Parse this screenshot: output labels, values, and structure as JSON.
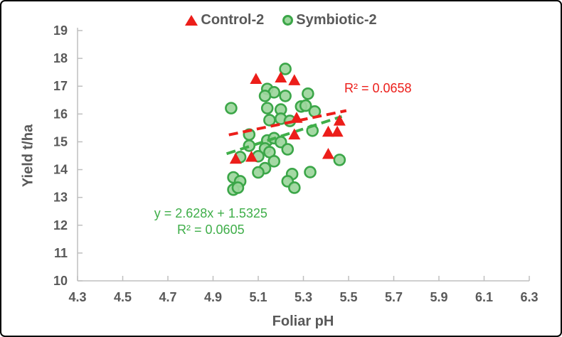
{
  "chart_data": {
    "type": "scatter",
    "title": "",
    "xlabel": "Foliar pH",
    "ylabel": "Yield t/ha",
    "xlim": [
      4.3,
      6.3
    ],
    "ylim": [
      10,
      19
    ],
    "x_ticks": [
      "4.3",
      "4.5",
      "4.7",
      "4.9",
      "5.1",
      "5.3",
      "5.5",
      "5.7",
      "5.9",
      "6.1",
      "6.3"
    ],
    "y_ticks": [
      "10",
      "11",
      "12",
      "13",
      "14",
      "15",
      "16",
      "17",
      "18",
      "19"
    ],
    "grid": false,
    "legend_position": "top-center",
    "axis_line_color": "#BFBFBF",
    "axis_text_color": "#595959",
    "series": [
      {
        "name": "Control-2",
        "marker": "triangle",
        "color": "#EC1E1A",
        "points": [
          [
            5.09,
            17.25
          ],
          [
            5.2,
            17.3
          ],
          [
            5.26,
            17.2
          ],
          [
            5.27,
            15.85
          ],
          [
            5.46,
            15.75
          ],
          [
            5.26,
            15.25
          ],
          [
            5.41,
            15.35
          ],
          [
            5.45,
            15.35
          ],
          [
            5.07,
            14.45
          ],
          [
            5.0,
            14.38
          ],
          [
            5.41,
            14.55
          ]
        ]
      },
      {
        "name": "Symbiotic-2",
        "marker": "circle",
        "fill": "#9CD69C",
        "stroke": "#3BA648",
        "points": [
          [
            5.22,
            17.62
          ],
          [
            5.14,
            16.9
          ],
          [
            5.17,
            16.78
          ],
          [
            5.32,
            16.73
          ],
          [
            5.13,
            16.65
          ],
          [
            5.22,
            16.65
          ],
          [
            4.98,
            16.21
          ],
          [
            5.14,
            16.21
          ],
          [
            5.2,
            16.16
          ],
          [
            5.29,
            16.27
          ],
          [
            5.31,
            16.3
          ],
          [
            5.35,
            16.09
          ],
          [
            5.15,
            15.78
          ],
          [
            5.2,
            15.83
          ],
          [
            5.24,
            15.75
          ],
          [
            5.34,
            15.4
          ],
          [
            5.06,
            15.26
          ],
          [
            5.14,
            15.05
          ],
          [
            5.17,
            15.13
          ],
          [
            5.2,
            14.99
          ],
          [
            5.06,
            14.86
          ],
          [
            5.13,
            14.76
          ],
          [
            5.15,
            14.63
          ],
          [
            5.23,
            14.73
          ],
          [
            5.1,
            14.48
          ],
          [
            5.02,
            14.45
          ],
          [
            5.17,
            14.3
          ],
          [
            5.46,
            14.35
          ],
          [
            5.13,
            14.05
          ],
          [
            5.1,
            13.9
          ],
          [
            5.33,
            13.91
          ],
          [
            5.25,
            13.84
          ],
          [
            5.23,
            13.58
          ],
          [
            5.26,
            13.35
          ],
          [
            4.99,
            13.72
          ],
          [
            5.02,
            13.58
          ],
          [
            4.99,
            13.28
          ],
          [
            5.01,
            13.35
          ]
        ]
      }
    ],
    "trendlines": [
      {
        "series": "Control-2",
        "color": "#EC1E1A",
        "style": "dashed",
        "x1": 4.97,
        "y1": 15.25,
        "x2": 5.49,
        "y2": 16.12
      },
      {
        "series": "Symbiotic-2",
        "color": "#3FAE49",
        "style": "dashed",
        "x1": 4.96,
        "y1": 14.57,
        "x2": 5.47,
        "y2": 15.91
      }
    ],
    "annotations": [
      {
        "text_lines": [
          "y = 2.628x + 1.5325",
          "R² = 0.0605"
        ],
        "x": 4.89,
        "y": 12.43,
        "color": "#3FAE49"
      },
      {
        "text_lines": [
          "R² = 0.0658"
        ],
        "x": 5.63,
        "y": 16.93,
        "color": "#EC1E1A"
      }
    ]
  }
}
